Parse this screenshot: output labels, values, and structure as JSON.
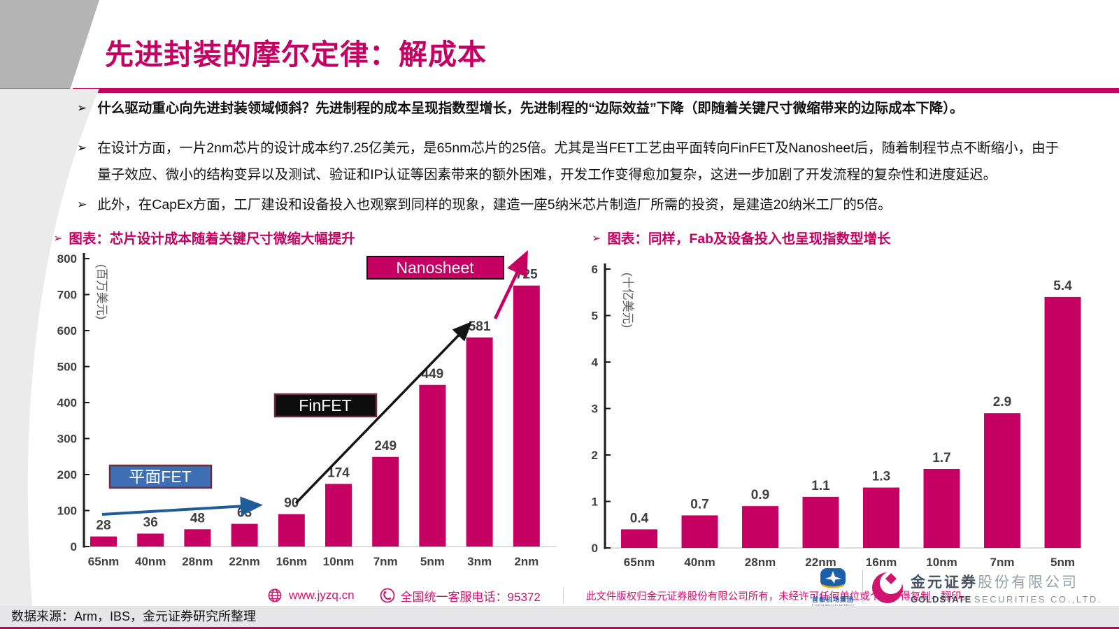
{
  "page": {
    "accent": "#c50062",
    "bullet_marker": "➢"
  },
  "header": {
    "title": "先进封装的摩尔定律：解成本"
  },
  "bullets": [
    {
      "marker": "➢",
      "text": "什么驱动重心向先进封装领域倾斜？先进制程的成本呈现指数型增长，先进制程的“边际效益”下降（即随着关键尺寸微缩带来的边际成本下降）。"
    },
    {
      "marker": "➢",
      "text": "在设计方面，一片2nm芯片的设计成本约7.25亿美元，是65nm芯片的25倍。尤其是当FET工艺由平面转向FinFET及Nanosheet后，随着制程节点不断缩小，由于量子效应、微小的结构变异以及测试、验证和IP认证等因素带来的额外困难，开发工作变得愈加复杂，这进一步加剧了开发流程的复杂性和进度延迟。"
    },
    {
      "marker": "➢",
      "text": "此外，在CapEx方面，工厂建设和设备投入也观察到同样的现象，建造一座5纳米芯片制造厂所需的投资，是建造20纳米工厂的5倍。"
    }
  ],
  "chart_data": [
    {
      "type": "bar",
      "title": "图表：芯片设计成本随着关键尺寸微缩大幅提升",
      "categories": [
        "65nm",
        "40nm",
        "28nm",
        "22nm",
        "16nm",
        "10nm",
        "7nm",
        "5nm",
        "3nm",
        "2nm"
      ],
      "values": [
        28,
        36,
        48,
        63,
        90,
        174,
        249,
        449,
        581,
        725
      ],
      "ylabel": "(百万美元)",
      "ylim": [
        0,
        800
      ],
      "ytick_step": 100,
      "grid": false,
      "legend": "none",
      "bar_color": "#c50062",
      "annotations": [
        {
          "label": "平面FET",
          "box_fill": "#3e6fb4",
          "box_border": "#6f2b3e",
          "arrow_color": "#1f5c99"
        },
        {
          "label": "FinFET",
          "box_fill": "#0c0c0c",
          "box_border": "#6f2b3e",
          "arrow_color": "#141414"
        },
        {
          "label": "Nanosheet",
          "box_fill": "#c50062",
          "box_border": "#141414",
          "arrow_color": "#c50062"
        }
      ]
    },
    {
      "type": "bar",
      "title": "图表：同样，Fab及设备投入也呈现指数型增长",
      "categories": [
        "65nm",
        "40nm",
        "28nm",
        "22nm",
        "16nm",
        "10nm",
        "7nm",
        "5nm"
      ],
      "values": [
        0.4,
        0.7,
        0.9,
        1.1,
        1.3,
        1.7,
        2.9,
        5.4
      ],
      "ylabel": "(十亿美元)",
      "ylim": [
        0,
        6
      ],
      "ytick_step": 1,
      "grid": false,
      "legend": "none",
      "bar_color": "#c50062"
    }
  ],
  "footer": {
    "website": "www.jyzq.cn",
    "hotline": "全国统一客服电话：95372",
    "copyright": "此文件版权归金元证券股份有限公司所有，未经许可任何单位或个人不得复制、翻印。"
  },
  "logos": {
    "airport_name": "首都机场集团",
    "airport_sub": "Capital Airports Holdings",
    "gs_cn_bold": "金元证券",
    "gs_cn_rest": "股份有限公司",
    "gs_en_bold": "GOLDSTATE",
    "gs_en_rest": "SECURITIES  CO.,LTD."
  },
  "bottom": {
    "source": "数据来源：Arm，IBS，金元证券研究所整理"
  }
}
